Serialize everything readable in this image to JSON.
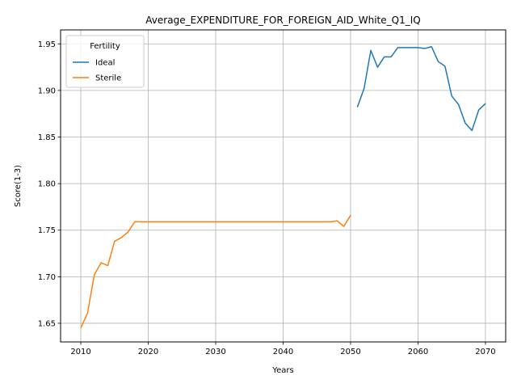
{
  "chart_data": {
    "type": "line",
    "title": "Average_EXPENDITURE_FOR_FOREIGN_AID_White_Q1_IQ",
    "xlabel": "Years",
    "ylabel": "Score(1-3)",
    "xlim": [
      2007,
      2073
    ],
    "ylim": [
      1.63,
      1.965
    ],
    "xticks": [
      2010,
      2020,
      2030,
      2040,
      2050,
      2060,
      2070
    ],
    "yticks": [
      1.65,
      1.7,
      1.75,
      1.8,
      1.85,
      1.9,
      1.95
    ],
    "grid": true,
    "legend": {
      "title": "Fertility",
      "placement": "top-left"
    },
    "series": [
      {
        "name": "Ideal",
        "color": "#1f77b4",
        "x": [
          2051,
          2052,
          2053,
          2054,
          2055,
          2056,
          2057,
          2058,
          2059,
          2060,
          2061,
          2062,
          2063,
          2064,
          2065,
          2066,
          2067,
          2068,
          2069,
          2070
        ],
        "y": [
          1.882,
          1.902,
          1.943,
          1.925,
          1.936,
          1.936,
          1.946,
          1.946,
          1.946,
          1.946,
          1.945,
          1.947,
          1.931,
          1.926,
          1.894,
          1.885,
          1.865,
          1.857,
          1.879,
          1.886
        ]
      },
      {
        "name": "Sterile",
        "color": "#ff7f0e",
        "x": [
          2010,
          2011,
          2012,
          2013,
          2014,
          2015,
          2016,
          2017,
          2018,
          2019,
          2020,
          2021,
          2022,
          2023,
          2024,
          2025,
          2026,
          2027,
          2028,
          2029,
          2030,
          2031,
          2032,
          2033,
          2034,
          2035,
          2036,
          2037,
          2038,
          2039,
          2040,
          2041,
          2042,
          2043,
          2044,
          2045,
          2046,
          2047,
          2048,
          2049,
          2050
        ],
        "y": [
          1.645,
          1.661,
          1.702,
          1.715,
          1.712,
          1.738,
          1.742,
          1.748,
          1.759,
          1.759,
          1.759,
          1.759,
          1.759,
          1.759,
          1.759,
          1.759,
          1.759,
          1.759,
          1.759,
          1.759,
          1.759,
          1.759,
          1.759,
          1.759,
          1.759,
          1.759,
          1.759,
          1.759,
          1.759,
          1.759,
          1.759,
          1.759,
          1.759,
          1.759,
          1.759,
          1.759,
          1.759,
          1.759,
          1.76,
          1.754,
          1.766
        ]
      }
    ]
  }
}
